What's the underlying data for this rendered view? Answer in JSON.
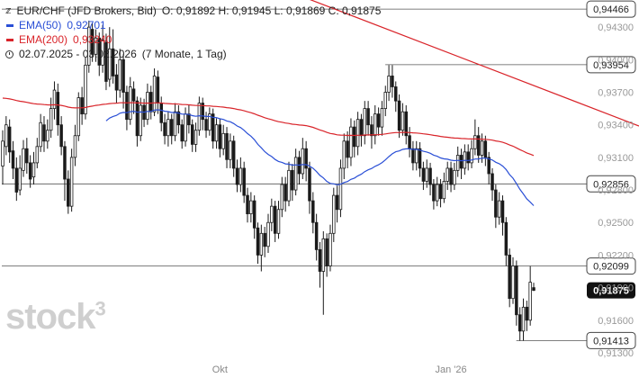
{
  "header": {
    "symbol": "EUR/CHF (JFD Brokers, Bid)",
    "ohlc": "O: 0,91892  H: 0,91945  L: 0,91869  C: 0,91875",
    "ema50_label": "EMA(50)",
    "ema50_value": "0,92701",
    "ema200_label": "EMA(200)",
    "ema200_value": "0,93240",
    "range_label": "02.07.2025 - 03.02.2026",
    "range_detail": "(7 Monate, 1 Tag)"
  },
  "watermark": "stock",
  "watermark_sup": "3",
  "colors": {
    "ema50": "#2a4fd6",
    "ema200": "#d9242a",
    "candle": "#1a1a1a",
    "axis_text": "#999999"
  },
  "chart_data": {
    "type": "candlestick",
    "ylim": [
      0.9125,
      0.9455
    ],
    "y_ticks": [
      {
        "value": 0.913,
        "label": "0,91300"
      },
      {
        "value": 0.916,
        "label": "0,91600"
      },
      {
        "value": 0.919,
        "label": "0,91900"
      },
      {
        "value": 0.922,
        "label": "0,92200"
      },
      {
        "value": 0.925,
        "label": "0,92500"
      },
      {
        "value": 0.928,
        "label": "0,92800"
      },
      {
        "value": 0.931,
        "label": "0,93100"
      },
      {
        "value": 0.934,
        "label": "0,93400"
      },
      {
        "value": 0.937,
        "label": "0,93700"
      },
      {
        "value": 0.94,
        "label": "0,94000"
      },
      {
        "value": 0.943,
        "label": "0,94300"
      }
    ],
    "x_labels": [
      {
        "label": "Okt",
        "index": 63
      },
      {
        "label": "Jan '26",
        "index": 130
      }
    ],
    "levels": [
      {
        "value": 0.94466,
        "label": "0,94466",
        "from_index": 0
      },
      {
        "value": 0.93954,
        "label": "0,93954",
        "from_index": 112
      },
      {
        "value": 0.92856,
        "label": "0,92856",
        "from_index": 0
      },
      {
        "value": 0.92099,
        "label": "0,92099",
        "from_index": 0
      },
      {
        "value": 0.91413,
        "label": "0,91413",
        "from_index": 150
      }
    ],
    "last_price": {
      "value": 0.91875,
      "label": "0,91875"
    },
    "ema200_trend": {
      "start": {
        "index": 87,
        "value": 0.9458
      },
      "end": {
        "index": 182,
        "value": 0.9342
      }
    },
    "candles": [
      [
        0.9302,
        0.9325,
        0.9335,
        0.9285
      ],
      [
        0.932,
        0.934,
        0.9348,
        0.9312
      ],
      [
        0.9338,
        0.9315,
        0.9345,
        0.9305
      ],
      [
        0.9316,
        0.93,
        0.9325,
        0.929
      ],
      [
        0.93,
        0.9278,
        0.931,
        0.927
      ],
      [
        0.928,
        0.93,
        0.9312,
        0.9275
      ],
      [
        0.9298,
        0.9318,
        0.9326,
        0.9292
      ],
      [
        0.9318,
        0.9305,
        0.9328,
        0.9295
      ],
      [
        0.9305,
        0.929,
        0.9312,
        0.9282
      ],
      [
        0.9292,
        0.9305,
        0.9315,
        0.9285
      ],
      [
        0.9305,
        0.932,
        0.9328,
        0.93
      ],
      [
        0.932,
        0.9342,
        0.935,
        0.9315
      ],
      [
        0.934,
        0.9325,
        0.9348,
        0.9315
      ],
      [
        0.9325,
        0.9335,
        0.9345,
        0.9318
      ],
      [
        0.9335,
        0.9355,
        0.9365,
        0.9328
      ],
      [
        0.9355,
        0.9372,
        0.938,
        0.9345
      ],
      [
        0.937,
        0.934,
        0.9378,
        0.933
      ],
      [
        0.934,
        0.932,
        0.9348,
        0.9312
      ],
      [
        0.932,
        0.929,
        0.9325,
        0.927
      ],
      [
        0.929,
        0.9265,
        0.9298,
        0.9258
      ],
      [
        0.9265,
        0.931,
        0.9318,
        0.926
      ],
      [
        0.931,
        0.933,
        0.934,
        0.9302
      ],
      [
        0.933,
        0.9365,
        0.937,
        0.9325
      ],
      [
        0.9365,
        0.935,
        0.9375,
        0.934
      ],
      [
        0.935,
        0.9395,
        0.9402,
        0.9345
      ],
      [
        0.9395,
        0.943,
        0.9436,
        0.9388
      ],
      [
        0.9428,
        0.9405,
        0.9434,
        0.9398
      ],
      [
        0.9405,
        0.942,
        0.9428,
        0.9398
      ],
      [
        0.942,
        0.9395,
        0.9425,
        0.9385
      ],
      [
        0.9395,
        0.9418,
        0.9432,
        0.9388
      ],
      [
        0.9416,
        0.938,
        0.9424,
        0.9372
      ],
      [
        0.9382,
        0.941,
        0.943,
        0.9375
      ],
      [
        0.941,
        0.9385,
        0.9428,
        0.9378
      ],
      [
        0.9386,
        0.9372,
        0.9396,
        0.936
      ],
      [
        0.9372,
        0.94,
        0.941,
        0.9365
      ],
      [
        0.94,
        0.937,
        0.9405,
        0.9355
      ],
      [
        0.937,
        0.9345,
        0.9376,
        0.9335
      ],
      [
        0.9345,
        0.9375,
        0.9384,
        0.934
      ],
      [
        0.9373,
        0.9362,
        0.938,
        0.935
      ],
      [
        0.9362,
        0.933,
        0.9366,
        0.932
      ],
      [
        0.933,
        0.9358,
        0.9365,
        0.9325
      ],
      [
        0.9358,
        0.9345,
        0.9364,
        0.9338
      ],
      [
        0.9345,
        0.937,
        0.9378,
        0.934
      ],
      [
        0.937,
        0.9352,
        0.9376,
        0.9345
      ],
      [
        0.9352,
        0.9385,
        0.9392,
        0.9348
      ],
      [
        0.9384,
        0.936,
        0.939,
        0.935
      ],
      [
        0.936,
        0.9342,
        0.9366,
        0.9334
      ],
      [
        0.9342,
        0.933,
        0.935,
        0.9322
      ],
      [
        0.933,
        0.9345,
        0.9352,
        0.932
      ],
      [
        0.9345,
        0.933,
        0.935,
        0.9322
      ],
      [
        0.933,
        0.9352,
        0.936,
        0.9325
      ],
      [
        0.9352,
        0.934,
        0.9358,
        0.9332
      ],
      [
        0.934,
        0.9325,
        0.9345,
        0.9318
      ],
      [
        0.9325,
        0.935,
        0.9356,
        0.932
      ],
      [
        0.935,
        0.934,
        0.9358,
        0.9332
      ],
      [
        0.934,
        0.9322,
        0.9345,
        0.9315
      ],
      [
        0.9322,
        0.9335,
        0.9342,
        0.9315
      ],
      [
        0.9335,
        0.936,
        0.9366,
        0.933
      ],
      [
        0.936,
        0.9345,
        0.9365,
        0.9335
      ],
      [
        0.9345,
        0.9335,
        0.9352,
        0.9328
      ],
      [
        0.9335,
        0.935,
        0.9356,
        0.933
      ],
      [
        0.935,
        0.9325,
        0.9355,
        0.9318
      ],
      [
        0.9325,
        0.934,
        0.9346,
        0.9318
      ],
      [
        0.934,
        0.9318,
        0.9346,
        0.931
      ],
      [
        0.9318,
        0.9332,
        0.934,
        0.9312
      ],
      [
        0.9332,
        0.9308,
        0.9338,
        0.93
      ],
      [
        0.9308,
        0.9325,
        0.9332,
        0.93
      ],
      [
        0.9325,
        0.93,
        0.933,
        0.9292
      ],
      [
        0.93,
        0.9285,
        0.9308,
        0.9278
      ],
      [
        0.9285,
        0.93,
        0.931,
        0.9278
      ],
      [
        0.93,
        0.9275,
        0.9306,
        0.9268
      ],
      [
        0.9275,
        0.9258,
        0.9282,
        0.925
      ],
      [
        0.9258,
        0.927,
        0.9278,
        0.925
      ],
      [
        0.927,
        0.9245,
        0.9275,
        0.9235
      ],
      [
        0.9245,
        0.922,
        0.925,
        0.9212
      ],
      [
        0.922,
        0.924,
        0.9248,
        0.9205
      ],
      [
        0.924,
        0.9228,
        0.9246,
        0.9218
      ],
      [
        0.9228,
        0.925,
        0.9258,
        0.9222
      ],
      [
        0.925,
        0.9265,
        0.9272,
        0.9242
      ],
      [
        0.9265,
        0.924,
        0.927,
        0.9232
      ],
      [
        0.924,
        0.9262,
        0.927,
        0.9235
      ],
      [
        0.9262,
        0.9285,
        0.9292,
        0.9255
      ],
      [
        0.9285,
        0.927,
        0.9292,
        0.926
      ],
      [
        0.927,
        0.9298,
        0.9306,
        0.9265
      ],
      [
        0.9298,
        0.928,
        0.9304,
        0.927
      ],
      [
        0.928,
        0.931,
        0.9318,
        0.9275
      ],
      [
        0.931,
        0.9295,
        0.9316,
        0.9285
      ],
      [
        0.9295,
        0.9318,
        0.9328,
        0.929
      ],
      [
        0.9318,
        0.93,
        0.9325,
        0.9288
      ],
      [
        0.93,
        0.927,
        0.9306,
        0.9258
      ],
      [
        0.927,
        0.925,
        0.9278,
        0.924
      ],
      [
        0.925,
        0.9225,
        0.9258,
        0.9215
      ],
      [
        0.9225,
        0.9205,
        0.9232,
        0.919
      ],
      [
        0.9205,
        0.9235,
        0.9242,
        0.9165
      ],
      [
        0.9235,
        0.921,
        0.924,
        0.92
      ],
      [
        0.921,
        0.924,
        0.9248,
        0.9205
      ],
      [
        0.924,
        0.9275,
        0.9282,
        0.9232
      ],
      [
        0.9275,
        0.9262,
        0.9284,
        0.925
      ],
      [
        0.9262,
        0.93,
        0.9308,
        0.9255
      ],
      [
        0.93,
        0.9325,
        0.9332,
        0.929
      ],
      [
        0.9325,
        0.931,
        0.9334,
        0.93
      ],
      [
        0.931,
        0.9338,
        0.9346,
        0.9302
      ],
      [
        0.9338,
        0.932,
        0.9344,
        0.931
      ],
      [
        0.932,
        0.9345,
        0.9352,
        0.9312
      ],
      [
        0.9345,
        0.933,
        0.935,
        0.932
      ],
      [
        0.933,
        0.9355,
        0.9362,
        0.9322
      ],
      [
        0.9355,
        0.934,
        0.9362,
        0.933
      ],
      [
        0.934,
        0.933,
        0.9348,
        0.9318
      ],
      [
        0.933,
        0.935,
        0.9358,
        0.9322
      ],
      [
        0.935,
        0.9338,
        0.9356,
        0.933
      ],
      [
        0.9338,
        0.9355,
        0.9362,
        0.933
      ],
      [
        0.9355,
        0.937,
        0.9376,
        0.9348
      ],
      [
        0.937,
        0.9385,
        0.9395,
        0.9362
      ],
      [
        0.9385,
        0.9375,
        0.9395,
        0.9365
      ],
      [
        0.9375,
        0.9362,
        0.938,
        0.9352
      ],
      [
        0.9362,
        0.9335,
        0.9368,
        0.9328
      ],
      [
        0.9335,
        0.9352,
        0.936,
        0.933
      ],
      [
        0.9352,
        0.933,
        0.9358,
        0.9322
      ],
      [
        0.933,
        0.9318,
        0.9338,
        0.931
      ],
      [
        0.9318,
        0.9305,
        0.9325,
        0.9298
      ],
      [
        0.9305,
        0.9318,
        0.9325,
        0.9298
      ],
      [
        0.9318,
        0.93,
        0.9324,
        0.9292
      ],
      [
        0.93,
        0.9288,
        0.9306,
        0.928
      ],
      [
        0.9288,
        0.93,
        0.9308,
        0.9282
      ],
      [
        0.93,
        0.9285,
        0.9305,
        0.9275
      ],
      [
        0.9285,
        0.927,
        0.929,
        0.9262
      ],
      [
        0.927,
        0.9285,
        0.9292,
        0.9265
      ],
      [
        0.9285,
        0.9272,
        0.929,
        0.9264
      ],
      [
        0.9272,
        0.9288,
        0.9296,
        0.9268
      ],
      [
        0.9288,
        0.93,
        0.9306,
        0.928
      ],
      [
        0.93,
        0.9285,
        0.9306,
        0.9278
      ],
      [
        0.9285,
        0.9298,
        0.9305,
        0.928
      ],
      [
        0.9298,
        0.9312,
        0.932,
        0.9292
      ],
      [
        0.9312,
        0.93,
        0.9318,
        0.929
      ],
      [
        0.93,
        0.9315,
        0.9322,
        0.9294
      ],
      [
        0.9315,
        0.9305,
        0.9322,
        0.9298
      ],
      [
        0.9305,
        0.9318,
        0.9326,
        0.93
      ],
      [
        0.9318,
        0.933,
        0.9345,
        0.9312
      ],
      [
        0.933,
        0.9312,
        0.9338,
        0.9305
      ],
      [
        0.9312,
        0.9325,
        0.9332,
        0.9305
      ],
      [
        0.9325,
        0.931,
        0.933,
        0.9302
      ],
      [
        0.931,
        0.9295,
        0.9315,
        0.9285
      ],
      [
        0.9295,
        0.928,
        0.93,
        0.927
      ],
      [
        0.928,
        0.9255,
        0.9285,
        0.9245
      ],
      [
        0.9255,
        0.927,
        0.9278,
        0.9248
      ],
      [
        0.927,
        0.925,
        0.9275,
        0.9238
      ],
      [
        0.925,
        0.922,
        0.9255,
        0.921
      ],
      [
        0.922,
        0.918,
        0.9226,
        0.9172
      ],
      [
        0.918,
        0.921,
        0.9218,
        0.9175
      ],
      [
        0.921,
        0.9165,
        0.9215,
        0.9155
      ],
      [
        0.9165,
        0.915,
        0.9172,
        0.9141
      ],
      [
        0.915,
        0.9172,
        0.918,
        0.9141
      ],
      [
        0.9172,
        0.916,
        0.9178,
        0.915
      ],
      [
        0.916,
        0.9195,
        0.921,
        0.9155
      ],
      [
        0.919,
        0.91875,
        0.91945,
        0.91869
      ]
    ]
  }
}
